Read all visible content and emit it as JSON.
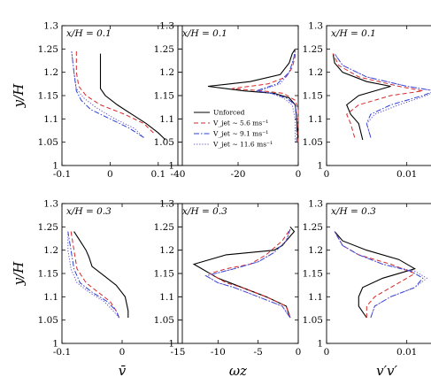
{
  "colors": {
    "unforced": "#000000",
    "v56": "#d62728",
    "v91": "#2b3fd6",
    "v116": "#6a5acd"
  },
  "chart_data": [
    {
      "type": "line",
      "panel": "top-left",
      "annotation": "x/H = 0.1",
      "xlabel": "",
      "ylabel": "y/H",
      "xlim": [
        -0.1,
        0.15
      ],
      "ylim": [
        1.0,
        1.3
      ],
      "xticks": [
        "-0.1",
        "0",
        "0.1"
      ],
      "yticks": [
        "1",
        "1.05",
        "1.1",
        "1.15",
        "1.2",
        "1.25",
        "1.3"
      ],
      "series": [
        {
          "key": "unforced",
          "style": "solid",
          "x": [
            0.115,
            0.1,
            0.075,
            0.045,
            0.015,
            -0.01,
            -0.02,
            -0.02,
            -0.02
          ],
          "y": [
            1.055,
            1.07,
            1.09,
            1.11,
            1.13,
            1.15,
            1.165,
            1.19,
            1.24
          ]
        },
        {
          "key": "v56",
          "style": "dashed",
          "x": [
            0.09,
            0.07,
            0.03,
            -0.02,
            -0.05,
            -0.065,
            -0.07,
            -0.07
          ],
          "y": [
            1.07,
            1.09,
            1.11,
            1.13,
            1.15,
            1.17,
            1.2,
            1.245
          ]
        },
        {
          "key": "v91",
          "style": "dashdot",
          "x": [
            0.07,
            0.04,
            0.0,
            -0.04,
            -0.06,
            -0.07,
            -0.075,
            -0.08
          ],
          "y": [
            1.06,
            1.08,
            1.1,
            1.12,
            1.14,
            1.16,
            1.2,
            1.245
          ]
        },
        {
          "key": "v116",
          "style": "dotted",
          "x": [
            0.07,
            0.05,
            0.01,
            -0.03,
            -0.055,
            -0.07,
            -0.075,
            -0.08
          ],
          "y": [
            1.06,
            1.08,
            1.1,
            1.125,
            1.145,
            1.165,
            1.2,
            1.245
          ]
        }
      ]
    },
    {
      "type": "line",
      "panel": "top-middle",
      "annotation": "x/H = 0.1",
      "xlabel": "",
      "ylabel": "",
      "xlim": [
        -40,
        0
      ],
      "ylim": [
        1.0,
        1.3
      ],
      "xticks": [
        "-40",
        "-20",
        "0"
      ],
      "yticks": [
        "1",
        "1.05",
        "1.1",
        "1.15",
        "1.2",
        "1.25",
        "1.3"
      ],
      "legend": {
        "placement": "lower-middle",
        "entries": [
          {
            "key": "unforced",
            "label": "Unforced"
          },
          {
            "key": "v56",
            "label": "V_jet ∼ 5.6 ms⁻¹"
          },
          {
            "key": "v91",
            "label": "V_jet ∼ 9.1 ms⁻¹"
          },
          {
            "key": "v116",
            "label": "V_jet ∼ 11.6 ms⁻¹"
          }
        ]
      },
      "series": [
        {
          "key": "unforced",
          "style": "solid",
          "x": [
            0,
            -0.5,
            -1,
            -3,
            -8,
            -18,
            -30,
            -16,
            -6,
            -3,
            -2,
            -1
          ],
          "y": [
            1.05,
            1.1,
            1.13,
            1.145,
            1.155,
            1.16,
            1.17,
            1.18,
            1.195,
            1.22,
            1.24,
            1.25
          ]
        },
        {
          "key": "v56",
          "style": "dashed",
          "x": [
            0,
            0,
            -1,
            -5,
            -12,
            -22,
            -10,
            -4,
            -2,
            -1,
            -1
          ],
          "y": [
            1.05,
            1.12,
            1.14,
            1.155,
            1.16,
            1.165,
            1.175,
            1.19,
            1.21,
            1.235,
            1.25
          ]
        },
        {
          "key": "v91",
          "style": "dashdot",
          "x": [
            -0.5,
            -0.5,
            -1,
            -4,
            -9,
            -14,
            -7,
            -3,
            -1.5,
            -1
          ],
          "y": [
            1.05,
            1.1,
            1.13,
            1.145,
            1.155,
            1.16,
            1.175,
            1.2,
            1.23,
            1.25
          ]
        },
        {
          "key": "v116",
          "style": "dotted",
          "x": [
            -1,
            -1,
            -2,
            -5,
            -9,
            -13,
            -6,
            -3,
            -1.5,
            -1
          ],
          "y": [
            1.05,
            1.1,
            1.13,
            1.145,
            1.155,
            1.16,
            1.175,
            1.2,
            1.23,
            1.25
          ]
        }
      ]
    },
    {
      "type": "line",
      "panel": "top-right",
      "annotation": "x/H = 0.1",
      "xlabel": "",
      "ylabel": "",
      "xlim": [
        0,
        0.015
      ],
      "ylim": [
        1.0,
        1.3
      ],
      "xticks": [
        "0",
        "0.01"
      ],
      "yticks": [
        "1",
        "1.05",
        "1.1",
        "1.15",
        "1.2",
        "1.25",
        "1.3"
      ],
      "series": [
        {
          "key": "unforced",
          "style": "solid",
          "x": [
            0.0045,
            0.004,
            0.003,
            0.0025,
            0.004,
            0.008,
            0.005,
            0.002,
            0.001,
            0.0008
          ],
          "y": [
            1.055,
            1.09,
            1.11,
            1.13,
            1.15,
            1.17,
            1.18,
            1.2,
            1.22,
            1.24
          ]
        },
        {
          "key": "v56",
          "style": "dashed",
          "x": [
            0.0035,
            0.003,
            0.0025,
            0.004,
            0.008,
            0.012,
            0.009,
            0.004,
            0.0015,
            0.0008
          ],
          "y": [
            1.06,
            1.09,
            1.11,
            1.13,
            1.15,
            1.16,
            1.17,
            1.19,
            1.215,
            1.24
          ]
        },
        {
          "key": "v91",
          "style": "dashdot",
          "x": [
            0.0055,
            0.005,
            0.0055,
            0.008,
            0.012,
            0.0135,
            0.01,
            0.005,
            0.002,
            0.001
          ],
          "y": [
            1.06,
            1.09,
            1.11,
            1.13,
            1.15,
            1.16,
            1.17,
            1.19,
            1.215,
            1.24
          ]
        },
        {
          "key": "v116",
          "style": "dotted",
          "x": [
            0.0055,
            0.005,
            0.006,
            0.009,
            0.0125,
            0.0135,
            0.01,
            0.005,
            0.002,
            0.001
          ],
          "y": [
            1.06,
            1.09,
            1.11,
            1.13,
            1.15,
            1.16,
            1.17,
            1.19,
            1.215,
            1.24
          ]
        }
      ]
    },
    {
      "type": "line",
      "panel": "bottom-left",
      "annotation": "x/H = 0.3",
      "xlabel": "v̄",
      "ylabel": "y/H",
      "xlim": [
        -0.1,
        0.1
      ],
      "ylim": [
        1.0,
        1.3
      ],
      "xticks": [
        "-0.1",
        "0"
      ],
      "yticks": [
        "1",
        "1.05",
        "1.1",
        "1.15",
        "1.2",
        "1.25",
        "1.3"
      ],
      "series": [
        {
          "key": "unforced",
          "style": "solid",
          "x": [
            0.01,
            0.01,
            0.005,
            -0.01,
            -0.03,
            -0.05,
            -0.055,
            -0.06,
            -0.07,
            -0.08
          ],
          "y": [
            1.055,
            1.07,
            1.1,
            1.125,
            1.145,
            1.165,
            1.185,
            1.2,
            1.22,
            1.24
          ]
        },
        {
          "key": "v56",
          "style": "dashed",
          "x": [
            -0.005,
            -0.01,
            -0.02,
            -0.04,
            -0.06,
            -0.075,
            -0.08,
            -0.085
          ],
          "y": [
            1.055,
            1.07,
            1.09,
            1.11,
            1.13,
            1.16,
            1.2,
            1.24
          ]
        },
        {
          "key": "v91",
          "style": "dashdot",
          "x": [
            -0.005,
            -0.01,
            -0.025,
            -0.05,
            -0.07,
            -0.08,
            -0.085,
            -0.09
          ],
          "y": [
            1.055,
            1.07,
            1.09,
            1.11,
            1.13,
            1.16,
            1.2,
            1.24
          ]
        },
        {
          "key": "v116",
          "style": "dotted",
          "x": [
            -0.005,
            -0.015,
            -0.03,
            -0.055,
            -0.075,
            -0.085,
            -0.09,
            -0.09
          ],
          "y": [
            1.055,
            1.07,
            1.09,
            1.11,
            1.13,
            1.16,
            1.2,
            1.24
          ]
        }
      ]
    },
    {
      "type": "line",
      "panel": "bottom-middle",
      "annotation": "x/H = 0.3",
      "xlabel": "ωz",
      "ylabel": "",
      "xlim": [
        -15,
        0
      ],
      "ylim": [
        1.0,
        1.3
      ],
      "xticks": [
        "-15",
        "-10",
        "-5",
        "0"
      ],
      "yticks": [
        "1",
        "1.05",
        "1.1",
        "1.15",
        "1.2",
        "1.25",
        "1.3"
      ],
      "series": [
        {
          "key": "unforced",
          "style": "solid",
          "x": [
            -1,
            -1.5,
            -4,
            -7,
            -10,
            -13,
            -9,
            -3,
            -2,
            -1.5,
            -1,
            -0.5,
            -1
          ],
          "y": [
            1.055,
            1.08,
            1.1,
            1.12,
            1.14,
            1.17,
            1.19,
            1.2,
            1.21,
            1.22,
            1.23,
            1.24,
            1.25
          ]
        },
        {
          "key": "v56",
          "style": "dashed",
          "x": [
            -1,
            -1.5,
            -4,
            -7,
            -9,
            -11,
            -9,
            -6,
            -4,
            -2,
            -1
          ],
          "y": [
            1.055,
            1.08,
            1.1,
            1.12,
            1.13,
            1.15,
            1.16,
            1.17,
            1.19,
            1.22,
            1.245
          ]
        },
        {
          "key": "v91",
          "style": "dashdot",
          "x": [
            -1,
            -2,
            -5,
            -8,
            -10,
            -11.5,
            -8,
            -5,
            -3,
            -1.5,
            -1
          ],
          "y": [
            1.055,
            1.08,
            1.1,
            1.12,
            1.13,
            1.145,
            1.16,
            1.175,
            1.195,
            1.22,
            1.245
          ]
        },
        {
          "key": "v116",
          "style": "dotted",
          "x": [
            -1,
            -2,
            -5,
            -8,
            -10,
            -11.5,
            -8,
            -5,
            -3,
            -1.5,
            -1
          ],
          "y": [
            1.055,
            1.08,
            1.1,
            1.12,
            1.13,
            1.145,
            1.16,
            1.175,
            1.195,
            1.22,
            1.245
          ]
        }
      ]
    },
    {
      "type": "line",
      "panel": "bottom-right",
      "annotation": "x/H = 0.3",
      "xlabel": "v′v′",
      "ylabel": "",
      "xlim": [
        0,
        0.015
      ],
      "ylim": [
        1.0,
        1.3
      ],
      "xticks": [
        "0",
        "0.01"
      ],
      "yticks": [
        "1",
        "1.05",
        "1.1",
        "1.15",
        "1.2",
        "1.25",
        "1.3"
      ],
      "series": [
        {
          "key": "unforced",
          "style": "solid",
          "x": [
            0.005,
            0.004,
            0.004,
            0.0045,
            0.007,
            0.011,
            0.009,
            0.005,
            0.002,
            0.001
          ],
          "y": [
            1.055,
            1.08,
            1.1,
            1.12,
            1.14,
            1.16,
            1.18,
            1.2,
            1.22,
            1.24
          ]
        },
        {
          "key": "v56",
          "style": "dashed",
          "x": [
            0.005,
            0.005,
            0.006,
            0.008,
            0.01,
            0.011,
            0.008,
            0.004,
            0.002,
            0.001
          ],
          "y": [
            1.055,
            1.08,
            1.1,
            1.12,
            1.14,
            1.15,
            1.17,
            1.19,
            1.21,
            1.24
          ]
        },
        {
          "key": "v91",
          "style": "dashdot",
          "x": [
            0.0055,
            0.006,
            0.008,
            0.011,
            0.012,
            0.0105,
            0.007,
            0.004,
            0.002,
            0.001
          ],
          "y": [
            1.055,
            1.08,
            1.1,
            1.12,
            1.14,
            1.155,
            1.17,
            1.19,
            1.21,
            1.24
          ]
        },
        {
          "key": "v116",
          "style": "dotted",
          "x": [
            0.0055,
            0.006,
            0.008,
            0.011,
            0.0125,
            0.011,
            0.007,
            0.004,
            0.002,
            0.001
          ],
          "y": [
            1.055,
            1.08,
            1.1,
            1.12,
            1.14,
            1.155,
            1.17,
            1.19,
            1.21,
            1.24
          ]
        }
      ]
    }
  ]
}
